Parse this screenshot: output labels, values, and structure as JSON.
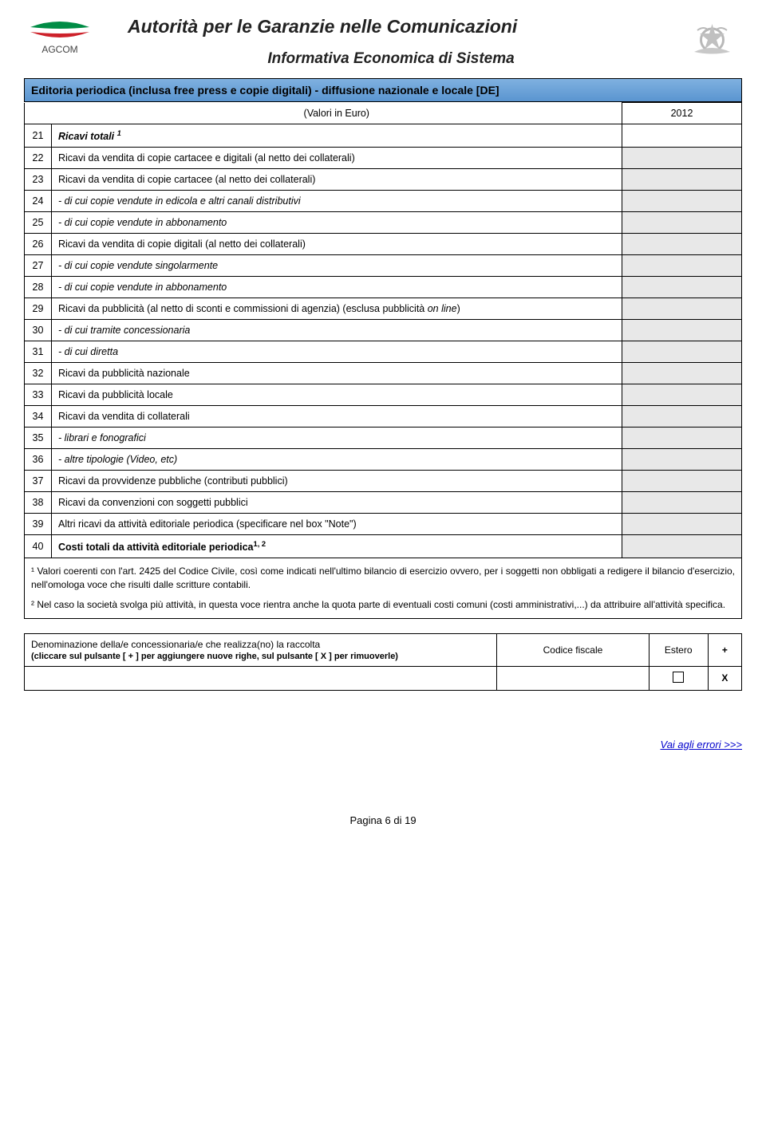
{
  "header": {
    "title": "Autorità per le Garanzie nelle Comunicazioni",
    "subtitle": "Informativa Economica di Sistema",
    "logo_left_text": "AGCOM",
    "logo_left_colors": {
      "top": "#008c45",
      "bottom": "#cd212a"
    },
    "emblem_color": "#c0c0c0"
  },
  "section": {
    "title": "Editoria periodica (inclusa free press e copie digitali) - diffusione nazionale e locale [DE]",
    "title_color": "#000000",
    "header_bg_top": "#7fb1e0",
    "header_bg_bottom": "#5a95d0"
  },
  "columns": {
    "col1": "(Valori in Euro)",
    "col2": "2012"
  },
  "rows": [
    {
      "n": "21",
      "label": "Ricavi totali ¹",
      "bold": true,
      "italic": true,
      "shade": false
    },
    {
      "n": "22",
      "label": "Ricavi da vendita di copie cartacee e digitali (al netto dei collaterali)",
      "bold": false,
      "italic": false,
      "shade": true
    },
    {
      "n": "23",
      "label": "Ricavi da vendita di copie cartacee (al netto dei collaterali)",
      "bold": false,
      "italic": false,
      "shade": true
    },
    {
      "n": "24",
      "label": "- di cui copie vendute in edicola e altri canali distributivi",
      "bold": false,
      "italic": true,
      "shade": true
    },
    {
      "n": "25",
      "label": "- di cui copie vendute in abbonamento",
      "bold": false,
      "italic": true,
      "shade": true
    },
    {
      "n": "26",
      "label": "Ricavi da vendita di copie digitali (al netto dei collaterali)",
      "bold": false,
      "italic": false,
      "shade": true
    },
    {
      "n": "27",
      "label": "- di cui copie vendute singolarmente",
      "bold": false,
      "italic": true,
      "shade": true
    },
    {
      "n": "28",
      "label": "- di cui copie vendute in abbonamento",
      "bold": false,
      "italic": true,
      "shade": true
    },
    {
      "n": "29",
      "label": "Ricavi da pubblicità (al netto di sconti e commissioni di agenzia) (esclusa pubblicità on line)",
      "bold": false,
      "italic": false,
      "shade": true
    },
    {
      "n": "30",
      "label": "- di cui tramite concessionaria",
      "bold": false,
      "italic": true,
      "shade": true
    },
    {
      "n": "31",
      "label": "- di cui diretta",
      "bold": false,
      "italic": true,
      "shade": true
    },
    {
      "n": "32",
      "label": "Ricavi da pubblicità nazionale",
      "bold": false,
      "italic": false,
      "shade": true
    },
    {
      "n": "33",
      "label": "Ricavi da pubblicità locale",
      "bold": false,
      "italic": false,
      "shade": true
    },
    {
      "n": "34",
      "label": "Ricavi da vendita di collaterali",
      "bold": false,
      "italic": false,
      "shade": true
    },
    {
      "n": "35",
      "label": "- librari e fonografici",
      "bold": false,
      "italic": true,
      "shade": true
    },
    {
      "n": "36",
      "label": "- altre tipologie (Video, etc)",
      "bold": false,
      "italic": true,
      "shade": true
    },
    {
      "n": "37",
      "label": "Ricavi da provvidenze pubbliche (contributi pubblici)",
      "bold": false,
      "italic": false,
      "shade": true
    },
    {
      "n": "38",
      "label": "Ricavi da convenzioni con soggetti pubblici",
      "bold": false,
      "italic": false,
      "shade": true
    },
    {
      "n": "39",
      "label": "Altri ricavi da attività editoriale periodica  (specificare nel box \"Note\")",
      "bold": false,
      "italic": false,
      "shade": true
    },
    {
      "n": "40",
      "label": "Costi totali da attività editoriale periodica¹' ²",
      "bold": true,
      "italic": false,
      "shade": true
    }
  ],
  "footnotes": {
    "f1": "¹ Valori coerenti con l'art. 2425 del Codice Civile, così come indicati nell'ultimo bilancio di esercizio ovvero, per i soggetti non obbligati a redigere il bilancio d'esercizio, nell'omologa voce che risulti dalle scritture contabili.",
    "f2": "² Nel caso la società svolga più attività, in questa voce rientra anche la quota parte di eventuali costi comuni (costi amministrativi,...) da attribuire all'attività specifica."
  },
  "concess": {
    "main_label": "Denominazione della/e concessionaria/e che realizza(no) la raccolta",
    "main_sub": "(cliccare sul pulsante [ + ] per aggiungere nuove righe, sul pulsante [ X ] per rimuoverle)",
    "cf_label": "Codice fiscale",
    "estero_label": "Estero",
    "add_btn": "+",
    "remove_btn": "X"
  },
  "footer": {
    "page": "Pagina 6 di 19",
    "errors_link": "Vai agli errori >>>"
  },
  "styles": {
    "border_color": "#000000",
    "shade_bg": "#e8e8e8",
    "link_color": "#0000cc",
    "body_width": 960,
    "body_height": 1408
  }
}
